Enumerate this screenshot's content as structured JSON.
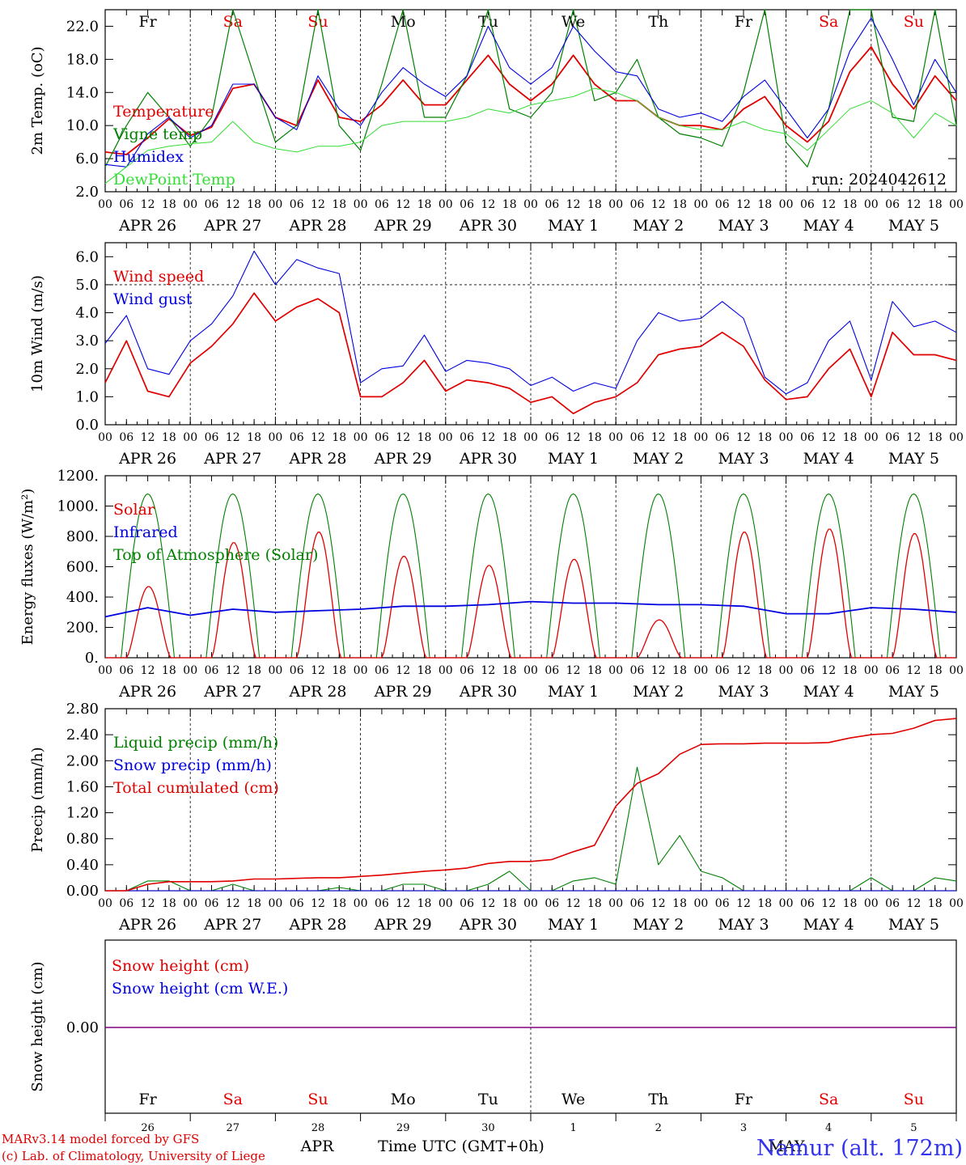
{
  "title_run": "run: 2024042612",
  "footer": {
    "model": "MARv3.14 model forced by GFS",
    "credit": "(c) Lab. of Climatology, University of Liege",
    "month": "APR",
    "month2": "MAY",
    "time_label": "Time UTC (GMT+0h)",
    "station": "Namur (alt. 172m)"
  },
  "days": [
    "Fr",
    "Sa",
    "Su",
    "Mo",
    "Tu",
    "We",
    "Th",
    "Fr",
    "Sa",
    "Su"
  ],
  "weekend_days": [
    1,
    2,
    8,
    9
  ],
  "date_labels": [
    "APR 26",
    "APR 27",
    "APR 28",
    "APR 29",
    "APR 30",
    "MAY  1",
    "MAY  2",
    "MAY  3",
    "MAY  4",
    "MAY  5"
  ],
  "day_numbers": [
    "26",
    "27",
    "28",
    "29",
    "30",
    "1",
    "2",
    "3",
    "4",
    "5"
  ],
  "hour_ticks": [
    "00",
    "06",
    "12",
    "18"
  ],
  "final_tick": "00",
  "colors": {
    "red": "#e00000",
    "green": "#008000",
    "blue": "#0000e0",
    "lightgreen": "#33dd33",
    "purple": "#800080"
  },
  "chart_data": [
    {
      "type": "line",
      "ylabel": "2m Temp. (oC)",
      "ylim": [
        2,
        24
      ],
      "yticks": [
        "2.0",
        "6.0",
        "10.0",
        "14.0",
        "18.0",
        "22.0"
      ],
      "ytick_values": [
        2,
        6,
        10,
        14,
        18,
        22
      ],
      "x_unit": "hours since APR 26 00 UTC",
      "x": [
        0,
        6,
        12,
        18,
        24,
        30,
        36,
        42,
        48,
        54,
        60,
        66,
        72,
        78,
        84,
        90,
        96,
        102,
        108,
        114,
        120,
        126,
        132,
        138,
        144,
        150,
        156,
        162,
        168,
        174,
        180,
        186,
        192,
        198,
        204,
        210,
        216,
        222,
        228,
        234,
        240
      ],
      "series": [
        {
          "name": "Temperature",
          "color": "red",
          "values": [
            6.8,
            6.5,
            8.5,
            10.8,
            8.8,
            9.8,
            14.5,
            15.0,
            11.0,
            10.0,
            15.5,
            11.0,
            10.5,
            12.5,
            15.5,
            12.5,
            12.5,
            15.5,
            18.5,
            15.0,
            13.0,
            15.0,
            18.5,
            15.0,
            13.0,
            13.0,
            11.0,
            10.0,
            10.0,
            9.5,
            12.0,
            13.5,
            10.0,
            8.0,
            10.5,
            16.5,
            19.5,
            15.0,
            12.0,
            16.0,
            13.0
          ]
        },
        {
          "name": "Vigne temp",
          "color": "green",
          "values": [
            5.0,
            10.0,
            14.0,
            11.0,
            7.5,
            11.0,
            24.0,
            16.0,
            8.0,
            10.0,
            24.0,
            10.0,
            7.0,
            15.0,
            24.0,
            11.0,
            11.0,
            16.0,
            24.0,
            12.0,
            11.0,
            14.0,
            24.0,
            13.0,
            14.0,
            18.0,
            11.0,
            9.0,
            8.5,
            7.5,
            14.0,
            24.0,
            8.0,
            5.0,
            12.0,
            24.0,
            24.0,
            11.0,
            10.5,
            24.0,
            10.0
          ]
        },
        {
          "name": "Humidex",
          "color": "blue",
          "values": [
            5.3,
            5.0,
            9.0,
            11.0,
            8.5,
            10.0,
            15.0,
            15.0,
            11.0,
            9.5,
            16.0,
            12.0,
            10.0,
            14.0,
            17.0,
            15.0,
            13.5,
            16.0,
            22.0,
            17.0,
            15.0,
            17.0,
            22.0,
            19.0,
            16.5,
            16.0,
            12.0,
            11.0,
            11.5,
            10.5,
            13.5,
            15.5,
            12.0,
            8.5,
            12.0,
            19.0,
            23.0,
            18.0,
            12.5,
            18.0,
            14.0
          ]
        },
        {
          "name": "DewPoint Temp",
          "color": "lightgreen",
          "values": [
            3.0,
            5.0,
            7.0,
            7.5,
            7.8,
            8.0,
            10.5,
            8.0,
            7.2,
            6.8,
            7.5,
            7.5,
            8.0,
            10.0,
            10.5,
            10.5,
            10.5,
            11.0,
            12.0,
            11.5,
            12.5,
            13.0,
            13.5,
            14.5,
            14.0,
            13.0,
            11.0,
            10.0,
            9.5,
            9.5,
            10.5,
            9.5,
            9.0,
            7.0,
            9.5,
            12.0,
            13.0,
            11.5,
            8.5,
            11.5,
            10.0
          ]
        }
      ]
    },
    {
      "type": "line",
      "ylabel": "10m Wind (m/s)",
      "ylim": [
        0,
        6.5
      ],
      "yticks": [
        "0.0",
        "1.0",
        "2.0",
        "3.0",
        "4.0",
        "5.0",
        "6.0"
      ],
      "ytick_values": [
        0,
        1,
        2,
        3,
        4,
        5,
        6
      ],
      "reference_line": 5.0,
      "x": [
        0,
        6,
        12,
        18,
        24,
        30,
        36,
        42,
        48,
        54,
        60,
        66,
        72,
        78,
        84,
        90,
        96,
        102,
        108,
        114,
        120,
        126,
        132,
        138,
        144,
        150,
        156,
        162,
        168,
        174,
        180,
        186,
        192,
        198,
        204,
        210,
        216,
        222,
        228,
        234,
        240
      ],
      "series": [
        {
          "name": "Wind speed",
          "color": "red",
          "values": [
            1.5,
            3.0,
            1.2,
            1.0,
            2.2,
            2.8,
            3.6,
            4.7,
            3.7,
            4.2,
            4.5,
            4.0,
            1.0,
            1.0,
            1.5,
            2.3,
            1.2,
            1.6,
            1.5,
            1.3,
            0.8,
            1.0,
            0.4,
            0.8,
            1.0,
            1.5,
            2.5,
            2.7,
            2.8,
            3.3,
            2.8,
            1.6,
            0.9,
            1.0,
            2.0,
            2.7,
            1.0,
            3.3,
            2.5,
            2.5,
            2.3
          ]
        },
        {
          "name": "Wind gust",
          "color": "blue",
          "values": [
            2.9,
            3.9,
            2.0,
            1.8,
            3.0,
            3.6,
            4.6,
            6.2,
            5.0,
            5.9,
            5.6,
            5.4,
            1.5,
            2.0,
            2.1,
            3.2,
            1.9,
            2.3,
            2.2,
            2.0,
            1.4,
            1.7,
            1.2,
            1.5,
            1.3,
            3.0,
            4.0,
            3.7,
            3.8,
            4.4,
            3.8,
            1.7,
            1.1,
            1.5,
            3.0,
            3.7,
            1.6,
            4.4,
            3.5,
            3.7,
            3.3
          ]
        }
      ]
    },
    {
      "type": "line",
      "ylabel": "Energy fluxes (W/m²)",
      "ylim": [
        0,
        1200
      ],
      "yticks": [
        "0.",
        "200.",
        "400.",
        "600.",
        "800.",
        "1000.",
        "1200."
      ],
      "ytick_values": [
        0,
        200,
        400,
        600,
        800,
        1000,
        1200
      ],
      "solar_peaks": [
        470,
        760,
        830,
        670,
        610,
        650,
        250,
        830,
        850,
        820
      ],
      "toa_peak": 1080,
      "infrared_x": [
        0,
        12,
        24,
        36,
        48,
        60,
        72,
        84,
        96,
        108,
        120,
        132,
        144,
        156,
        168,
        180,
        192,
        204,
        216,
        228,
        240
      ],
      "infrared": [
        270,
        330,
        280,
        320,
        300,
        310,
        320,
        340,
        340,
        350,
        370,
        360,
        360,
        350,
        350,
        340,
        290,
        290,
        330,
        320,
        300
      ],
      "series": [
        {
          "name": "Solar",
          "color": "red"
        },
        {
          "name": "Infrared",
          "color": "blue"
        },
        {
          "name": "Top of Atmosphere (Solar)",
          "color": "green"
        }
      ]
    },
    {
      "type": "line",
      "ylabel": "Precip (mm/h)",
      "ylim": [
        0,
        2.8
      ],
      "yticks": [
        "0.00",
        "0.40",
        "0.80",
        "1.20",
        "1.60",
        "2.00",
        "2.40",
        "2.80"
      ],
      "ytick_values": [
        0,
        0.4,
        0.8,
        1.2,
        1.6,
        2.0,
        2.4,
        2.8
      ],
      "x": [
        0,
        6,
        12,
        18,
        24,
        30,
        36,
        42,
        48,
        54,
        60,
        66,
        72,
        78,
        84,
        90,
        96,
        102,
        108,
        114,
        120,
        126,
        132,
        138,
        144,
        150,
        156,
        162,
        168,
        174,
        180,
        186,
        192,
        198,
        204,
        210,
        216,
        222,
        228,
        234,
        240
      ],
      "series": [
        {
          "name": "Liquid precip (mm/h)",
          "color": "green",
          "values": [
            0,
            0,
            0.15,
            0.15,
            0,
            0,
            0.1,
            0,
            0,
            0,
            0,
            0.05,
            0,
            0,
            0.1,
            0.1,
            0,
            0,
            0.1,
            0.3,
            0,
            0,
            0.15,
            0.2,
            0.1,
            1.9,
            0.4,
            0.85,
            0.3,
            0.2,
            0,
            0,
            0,
            0,
            0,
            0,
            0.2,
            0,
            0,
            0.2,
            0.15
          ]
        },
        {
          "name": "Snow precip (mm/h)",
          "color": "blue",
          "values": [
            0,
            0,
            0,
            0,
            0,
            0,
            0,
            0,
            0,
            0,
            0,
            0,
            0,
            0,
            0,
            0,
            0,
            0,
            0,
            0,
            0,
            0,
            0,
            0,
            0,
            0,
            0,
            0,
            0,
            0,
            0,
            0,
            0,
            0,
            0,
            0,
            0,
            0,
            0,
            0,
            0
          ]
        },
        {
          "name": "Total cumulated (cm)",
          "color": "red",
          "values": [
            0,
            0,
            0.1,
            0.14,
            0.14,
            0.14,
            0.15,
            0.18,
            0.18,
            0.19,
            0.2,
            0.2,
            0.22,
            0.24,
            0.27,
            0.3,
            0.32,
            0.35,
            0.42,
            0.45,
            0.45,
            0.48,
            0.6,
            0.7,
            1.3,
            1.65,
            1.8,
            2.1,
            2.25,
            2.26,
            2.26,
            2.27,
            2.27,
            2.27,
            2.28,
            2.35,
            2.4,
            2.42,
            2.5,
            2.62,
            2.65
          ]
        }
      ]
    },
    {
      "type": "line",
      "ylabel": "Snow height (cm)",
      "yticks": [
        "0.00"
      ],
      "series": [
        {
          "name": "Snow height (cm)",
          "color": "red",
          "values": [
            0,
            0
          ]
        },
        {
          "name": "Snow height (cm W.E.)",
          "color": "blue",
          "values": [
            0,
            0
          ]
        }
      ]
    }
  ]
}
